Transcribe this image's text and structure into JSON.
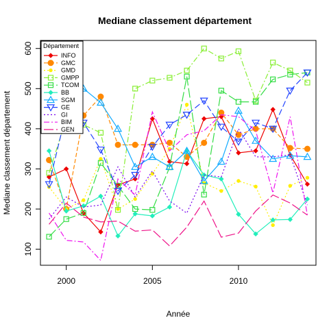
{
  "chart_data": {
    "type": "line",
    "title": "Mediane classement département",
    "xlabel": "Année",
    "ylabel": "Mediane classement département",
    "xlim": [
      1998.5,
      2014.5
    ],
    "ylim": [
      60,
      620
    ],
    "x_ticks": [
      2000,
      2005,
      2010
    ],
    "y_ticks": [
      100,
      200,
      300,
      400,
      500,
      600
    ],
    "legend_title": "Département",
    "legend_position": "top-left",
    "x": [
      1999,
      2000,
      2001,
      2002,
      2003,
      2004,
      2005,
      2006,
      2007,
      2008,
      2009,
      2010,
      2011,
      2012,
      2013,
      2014
    ],
    "series": [
      {
        "name": "INFO",
        "color": "#ee0000",
        "dash": "",
        "marker": "diamond",
        "values": [
          280,
          300,
          190,
          143,
          260,
          275,
          425,
          318,
          313,
          425,
          430,
          340,
          345,
          448,
          335,
          262
        ]
      },
      {
        "name": "GMC",
        "color": "#ff8800",
        "dash": "6,3",
        "marker": "circle",
        "values": [
          322,
          200,
          433,
          480,
          360,
          360,
          360,
          365,
          330,
          365,
          440,
          385,
          400,
          400,
          352,
          350
        ]
      },
      {
        "name": "GMD",
        "color": "#ffee00",
        "dash": "2,3",
        "marker": "dot",
        "values": [
          255,
          200,
          222,
          325,
          200,
          225,
          288,
          350,
          460,
          265,
          245,
          270,
          256,
          160,
          258,
          278
        ]
      },
      {
        "name": "GMPP",
        "color": "#88ee33",
        "dash": "8,3,2,3",
        "marker": "square",
        "values": [
          290,
          425,
          410,
          390,
          198,
          500,
          520,
          527,
          545,
          600,
          575,
          593,
          470,
          565,
          545,
          515
        ]
      },
      {
        "name": "TCOM",
        "color": "#33dd44",
        "dash": "14,4",
        "marker": "square",
        "values": [
          131,
          175,
          190,
          315,
          258,
          200,
          198,
          304,
          530,
          236,
          495,
          467,
          467,
          523,
          535,
          540
        ]
      },
      {
        "name": "BB",
        "color": "#22eebb",
        "dash": "",
        "marker": "diamond",
        "values": [
          345,
          195,
          208,
          232,
          133,
          188,
          183,
          205,
          345,
          285,
          275,
          187,
          138,
          173,
          174,
          225
        ]
      },
      {
        "name": "SGM",
        "color": "#11aaff",
        "dash": "",
        "marker": "triangle-up",
        "values": [
          460,
          440,
          500,
          465,
          400,
          305,
          330,
          305,
          345,
          270,
          318,
          445,
          370,
          325,
          333,
          330
        ]
      },
      {
        "name": "GE",
        "color": "#2244ff",
        "dash": "9,4",
        "marker": "triangle-down",
        "values": [
          262,
          440,
          415,
          348,
          245,
          285,
          355,
          410,
          435,
          470,
          405,
          368,
          415,
          400,
          495,
          540
        ]
      },
      {
        "name": "GI",
        "color": "#7700ee",
        "dash": "2,3",
        "marker": "none",
        "values": [
          175,
          230,
          205,
          210,
          305,
          230,
          295,
          220,
          190,
          285,
          280,
          400,
          330,
          330,
          335,
          210
        ]
      },
      {
        "name": "BIM",
        "color": "#ee11ee",
        "dash": "8,3,2,3",
        "marker": "none",
        "values": [
          190,
          122,
          118,
          72,
          275,
          235,
          442,
          345,
          385,
          395,
          435,
          430,
          395,
          240,
          430,
          185
        ]
      },
      {
        "name": "GEN",
        "color": "#ee1188",
        "dash": "14,4",
        "marker": "none",
        "values": [
          162,
          215,
          180,
          168,
          170,
          145,
          148,
          108,
          155,
          220,
          130,
          140,
          195,
          235,
          215,
          185
        ]
      }
    ]
  }
}
